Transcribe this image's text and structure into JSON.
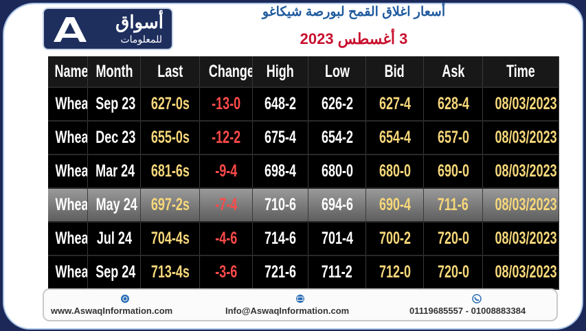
{
  "header": {
    "logo_ar": "أسواق",
    "logo_sub": "للمعلومات",
    "title": "أسعار اغلاق القمح لبورصة شيكاغو",
    "date": "3 أغسطس 2023"
  },
  "table": {
    "columns": [
      "Name",
      "Month",
      "Last",
      "Change",
      "High",
      "Low",
      "Bid",
      "Ask",
      "Time"
    ],
    "rows": [
      [
        "Wheat",
        "Sep 23",
        "627-0s",
        "-13-0",
        "648-2",
        "626-2",
        "627-4",
        "628-4",
        "08/03/2023"
      ],
      [
        "Wheat",
        "Dec 23",
        "655-0s",
        "-12-2",
        "675-4",
        "654-2",
        "654-4",
        "657-0",
        "08/03/2023"
      ],
      [
        "Wheat",
        "Mar 24",
        "681-6s",
        "-9-4",
        "698-4",
        "680-0",
        "680-0",
        "690-0",
        "08/03/2023"
      ],
      [
        "Wheat",
        "May 24",
        "697-2s",
        "-7-4",
        "710-6",
        "694-6",
        "690-4",
        "711-6",
        "08/03/2023"
      ],
      [
        "Wheat",
        "Jul 24",
        "704-4s",
        "-4-6",
        "714-6",
        "701-4",
        "700-2",
        "720-0",
        "08/03/2023"
      ],
      [
        "Wheat",
        "Sep 24",
        "713-4s",
        "-3-6",
        "721-6",
        "711-2",
        "712-0",
        "720-0",
        "08/03/2023"
      ]
    ]
  },
  "footer": {
    "website": "www.AswaqInformation.com",
    "email": "Info@AswaqInformation.com",
    "phones": "01119685557 - 01008883384"
  }
}
